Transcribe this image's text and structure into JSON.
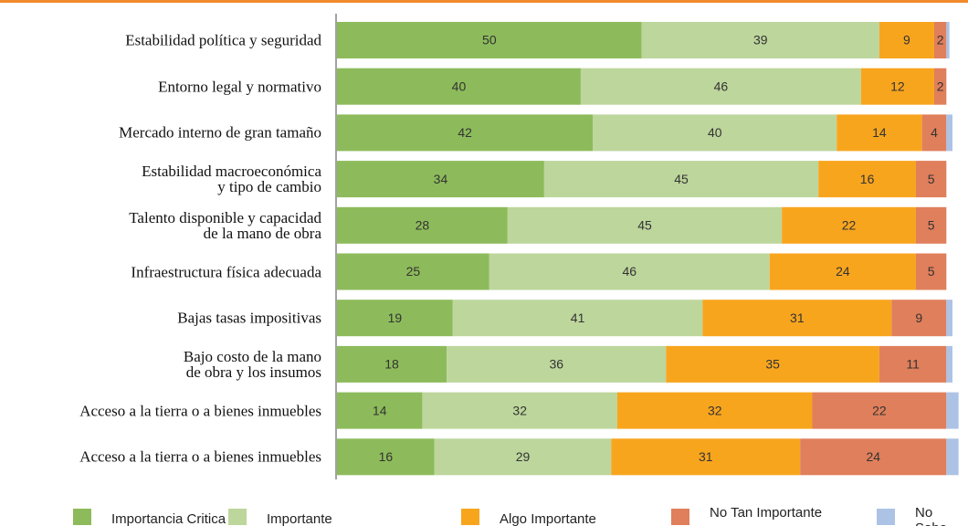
{
  "chart_data": {
    "type": "stacked-bar",
    "orientation": "horizontal",
    "categories": [
      "Estabilidad política y seguridad",
      "Entorno legal y normativo",
      "Mercado interno de gran tamaño",
      "Estabilidad macroeconómica\ny tipo de cambio",
      "Talento disponible y capacidad\nde la mano de obra",
      "Infraestructura física adecuada",
      "Bajas tasas impositivas",
      "Bajo costo de la mano\nde obra y los insumos",
      "Acceso a la tierra o a bienes inmuebles",
      "Acceso a la tierra o a bienes inmuebles"
    ],
    "series": [
      {
        "name": "Importancia Critica",
        "color": "#8dbb5b",
        "values": [
          50,
          40,
          42,
          34,
          28,
          25,
          19,
          18,
          14,
          16
        ]
      },
      {
        "name": "Importante",
        "color": "#bdd69c",
        "values": [
          39,
          46,
          40,
          45,
          45,
          46,
          41,
          36,
          32,
          29
        ]
      },
      {
        "name": "Algo Importante",
        "color": "#f8a51e",
        "values": [
          9,
          12,
          14,
          16,
          22,
          24,
          31,
          35,
          32,
          31
        ]
      },
      {
        "name": "No Tan Importante",
        "color": "#e07f5b",
        "values": [
          2,
          2,
          4,
          5,
          5,
          5,
          9,
          11,
          22,
          24
        ]
      },
      {
        "name": "No Sabe",
        "color": "#adc3e5",
        "values": [
          0.5,
          0,
          1,
          0,
          0,
          0,
          1,
          1,
          2,
          2
        ]
      }
    ],
    "value_labels_series": [
      0,
      1,
      2,
      3
    ],
    "xlim": [
      0,
      101
    ]
  }
}
